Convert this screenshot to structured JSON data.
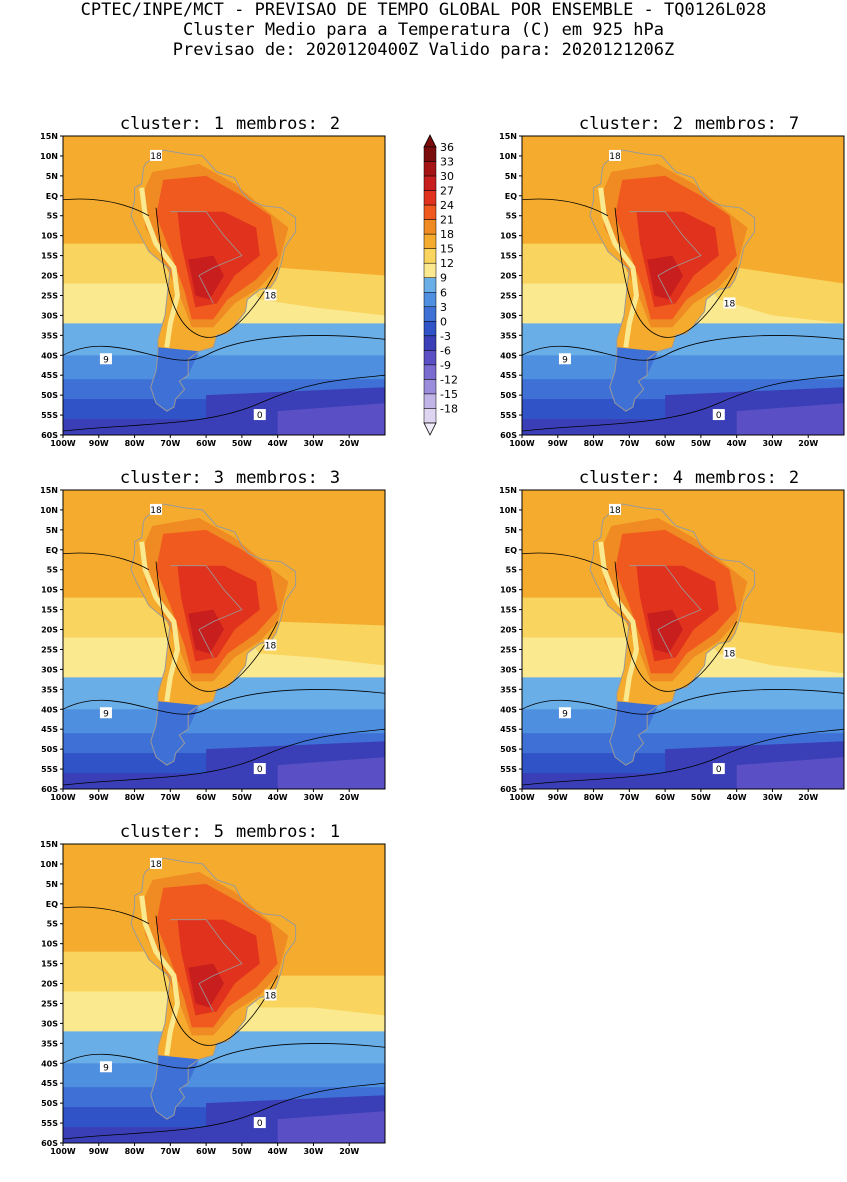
{
  "header": {
    "line1": "CPTEC/INPE/MCT - PREVISAO DE TEMPO GLOBAL POR ENSEMBLE - TQ0126L028",
    "line2": "Cluster Medio para a Temperatura (C) em 925 hPa",
    "line3": "Previsao de: 2020120400Z   Valido para: 2020121206Z"
  },
  "lat_labels": [
    "15N",
    "10N",
    "5N",
    "EQ",
    "5S",
    "10S",
    "15S",
    "20S",
    "25S",
    "30S",
    "35S",
    "40S",
    "45S",
    "50S",
    "55S",
    "60S"
  ],
  "lon_labels": [
    "100W",
    "90W",
    "80W",
    "70W",
    "60W",
    "50W",
    "40W",
    "30W",
    "20W"
  ],
  "colorbar": {
    "levels": [
      "36",
      "33",
      "30",
      "27",
      "24",
      "21",
      "18",
      "15",
      "12",
      "9",
      "6",
      "3",
      "0",
      "-3",
      "-6",
      "-9",
      "-12",
      "-15",
      "-18"
    ],
    "colors": [
      "#7a0c0c",
      "#a51414",
      "#c81e1e",
      "#e0321c",
      "#f05a1e",
      "#f08a23",
      "#f5ac2e",
      "#f9d45e",
      "#fbe98f",
      "#6aaee8",
      "#4f8fe0",
      "#3e70d6",
      "#3153c8",
      "#3a3fb7",
      "#5a4fc4",
      "#7a6bd0",
      "#9b8ddb",
      "#c1b5e8",
      "#ddd5f2"
    ]
  },
  "panels": [
    {
      "cluster_label": "cluster:",
      "cluster": "1",
      "members_label": "membros:",
      "members": "2"
    },
    {
      "cluster_label": "cluster:",
      "cluster": "2",
      "members_label": "membros:",
      "members": "7"
    },
    {
      "cluster_label": "cluster:",
      "cluster": "3",
      "members_label": "membros:",
      "members": "3"
    },
    {
      "cluster_label": "cluster:",
      "cluster": "4",
      "members_label": "membros:",
      "members": "2"
    },
    {
      "cluster_label": "cluster:",
      "cluster": "5",
      "members_label": "membros:",
      "members": "1"
    }
  ],
  "contour_labels": {
    "c18": "18",
    "c9": "9",
    "c0": "0"
  }
}
